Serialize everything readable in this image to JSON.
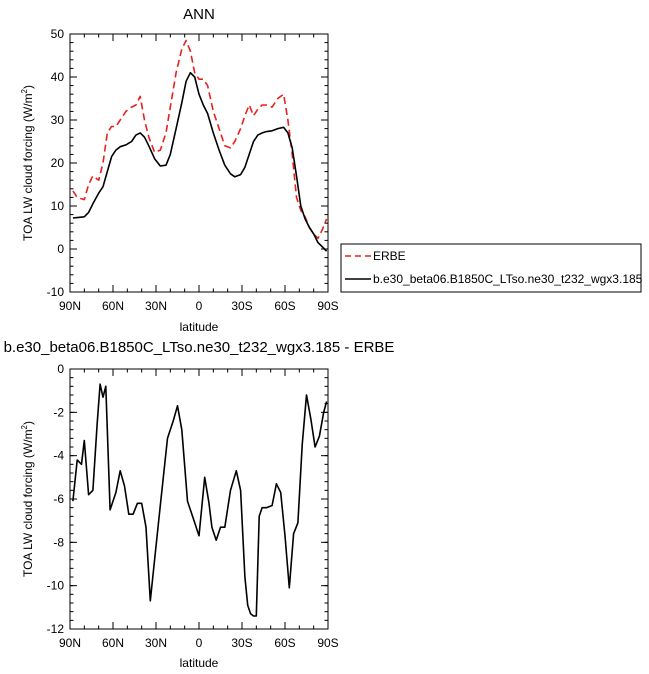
{
  "chart_data": [
    {
      "type": "line",
      "title": "ANN",
      "xlabel": "latitude",
      "ylabel": "TOA LW cloud forcing (W/m",
      "ylabel_sup": "2",
      "ylabel_close": ")",
      "xlim": [
        90,
        -90
      ],
      "ylim": [
        -10,
        50
      ],
      "x_ticks": [
        90,
        60,
        30,
        0,
        -30,
        -60,
        -90
      ],
      "x_tick_labels": [
        "90N",
        "60N",
        "30N",
        "0",
        "30S",
        "60S",
        "90S"
      ],
      "y_ticks": [
        -10,
        0,
        10,
        20,
        30,
        40,
        50
      ],
      "y_tick_labels": [
        "-10",
        "0",
        "10",
        "20",
        "30",
        "40",
        "50"
      ],
      "grid": false,
      "legend": "outside-right",
      "series": [
        {
          "name": "ERBE",
          "color": "#e8211d",
          "dash": "dashed",
          "x": [
            88,
            85,
            80,
            77,
            74,
            70,
            67,
            64,
            61,
            58,
            55,
            51,
            47,
            44,
            41,
            38,
            35,
            31,
            27,
            23,
            20,
            16,
            12,
            9,
            6,
            3,
            0,
            -3,
            -6,
            -10,
            -14,
            -18,
            -22,
            -25,
            -29,
            -32,
            -35,
            -38,
            -41,
            -44,
            -47,
            -51,
            -55,
            -59,
            -62,
            -65,
            -68,
            -71,
            -74,
            -77,
            -80,
            -83,
            -86,
            -89
          ],
          "values": [
            13.5,
            12,
            11.5,
            15,
            17,
            16,
            20,
            27,
            28.5,
            28.5,
            30,
            32,
            33,
            33.5,
            35.5,
            30,
            26,
            22.5,
            23,
            27,
            33,
            41,
            46.5,
            48.5,
            46,
            41,
            39.5,
            39.5,
            38,
            32,
            28,
            24,
            23.5,
            25,
            28,
            31,
            33.5,
            31,
            32.5,
            33.5,
            33.5,
            33,
            35,
            36,
            30,
            22,
            12,
            9,
            7.5,
            5,
            3.5,
            2.5,
            4.5,
            7
          ]
        },
        {
          "name": "b.e30_beta06.B1850C_LTso.ne30_t232_wgx3.185",
          "color": "#000000",
          "dash": "solid",
          "x": [
            88,
            85,
            80,
            77,
            74,
            70,
            67,
            64,
            61,
            58,
            55,
            51,
            47,
            44,
            41,
            38,
            35,
            31,
            27,
            23,
            20,
            16,
            12,
            9,
            6,
            3,
            0,
            -3,
            -6,
            -10,
            -14,
            -18,
            -22,
            -25,
            -29,
            -32,
            -35,
            -38,
            -41,
            -44,
            -47,
            -51,
            -55,
            -59,
            -62,
            -65,
            -68,
            -71,
            -74,
            -77,
            -80,
            -83,
            -86,
            -89
          ],
          "values": [
            7.2,
            7.3,
            7.5,
            8.5,
            10.5,
            13,
            14.5,
            18,
            21.5,
            23,
            23.8,
            24.2,
            25,
            26.5,
            27,
            26,
            24,
            21,
            19.3,
            19.5,
            22,
            28,
            34,
            39,
            41,
            40,
            36,
            33.5,
            31.5,
            27,
            23,
            19.5,
            17.5,
            16.8,
            17.3,
            19,
            22,
            25,
            26.5,
            27,
            27.3,
            27.5,
            28,
            28.3,
            27,
            23.5,
            17,
            10,
            7,
            5,
            3.5,
            1.5,
            0.5,
            -0.5
          ]
        }
      ]
    },
    {
      "type": "line",
      "title": "b.e30_beta06.B1850C_LTso.ne30_t232_wgx3.185 - ERBE",
      "xlabel": "latitude",
      "ylabel": "TOA LW cloud forcing (W/m",
      "ylabel_sup": "2",
      "ylabel_close": ")",
      "xlim": [
        90,
        -90
      ],
      "ylim": [
        -12,
        0
      ],
      "x_ticks": [
        90,
        60,
        30,
        0,
        -30,
        -60,
        -90
      ],
      "x_tick_labels": [
        "90N",
        "60N",
        "30N",
        "0",
        "30S",
        "60S",
        "90S"
      ],
      "y_ticks": [
        -12,
        -10,
        -8,
        -6,
        -4,
        -2,
        0
      ],
      "y_tick_labels": [
        "-12",
        "-10",
        "-8",
        "-6",
        "-4",
        "-2",
        "0"
      ],
      "grid": false,
      "series": [
        {
          "color": "#000000",
          "dash": "solid",
          "x": [
            88,
            85,
            82,
            80,
            77,
            74,
            71,
            69,
            67,
            65,
            62,
            58,
            55,
            52,
            49,
            46,
            43,
            40,
            37,
            34,
            31,
            27,
            22,
            18,
            15,
            12,
            8,
            4,
            0,
            -4,
            -7,
            -9,
            -12,
            -15,
            -18,
            -22,
            -26,
            -29,
            -32,
            -34,
            -36,
            -38,
            -40,
            -42,
            -44,
            -47,
            -51,
            -54,
            -57,
            -60,
            -63,
            -66,
            -69,
            -72,
            -75,
            -78,
            -81,
            -84,
            -87,
            -89
          ],
          "values": [
            -6.1,
            -4.2,
            -4.4,
            -3.3,
            -5.8,
            -5.6,
            -2.5,
            -0.7,
            -1.3,
            -0.8,
            -6.5,
            -5.7,
            -4.7,
            -5.4,
            -6.7,
            -6.7,
            -6.2,
            -6.2,
            -7.3,
            -10.7,
            -8.8,
            -6.3,
            -3.2,
            -2.4,
            -1.7,
            -2.8,
            -6.1,
            -6.9,
            -7.7,
            -5.0,
            -6.2,
            -7.3,
            -7.9,
            -7.3,
            -7.3,
            -5.6,
            -4.7,
            -5.6,
            -9.6,
            -10.9,
            -11.3,
            -11.4,
            -11.4,
            -6.8,
            -6.4,
            -6.4,
            -6.3,
            -5.3,
            -5.7,
            -7.7,
            -10.1,
            -7.6,
            -7.1,
            -3.5,
            -1.2,
            -2.3,
            -3.6,
            -3.1,
            -2.0,
            -1.5
          ]
        }
      ]
    }
  ]
}
